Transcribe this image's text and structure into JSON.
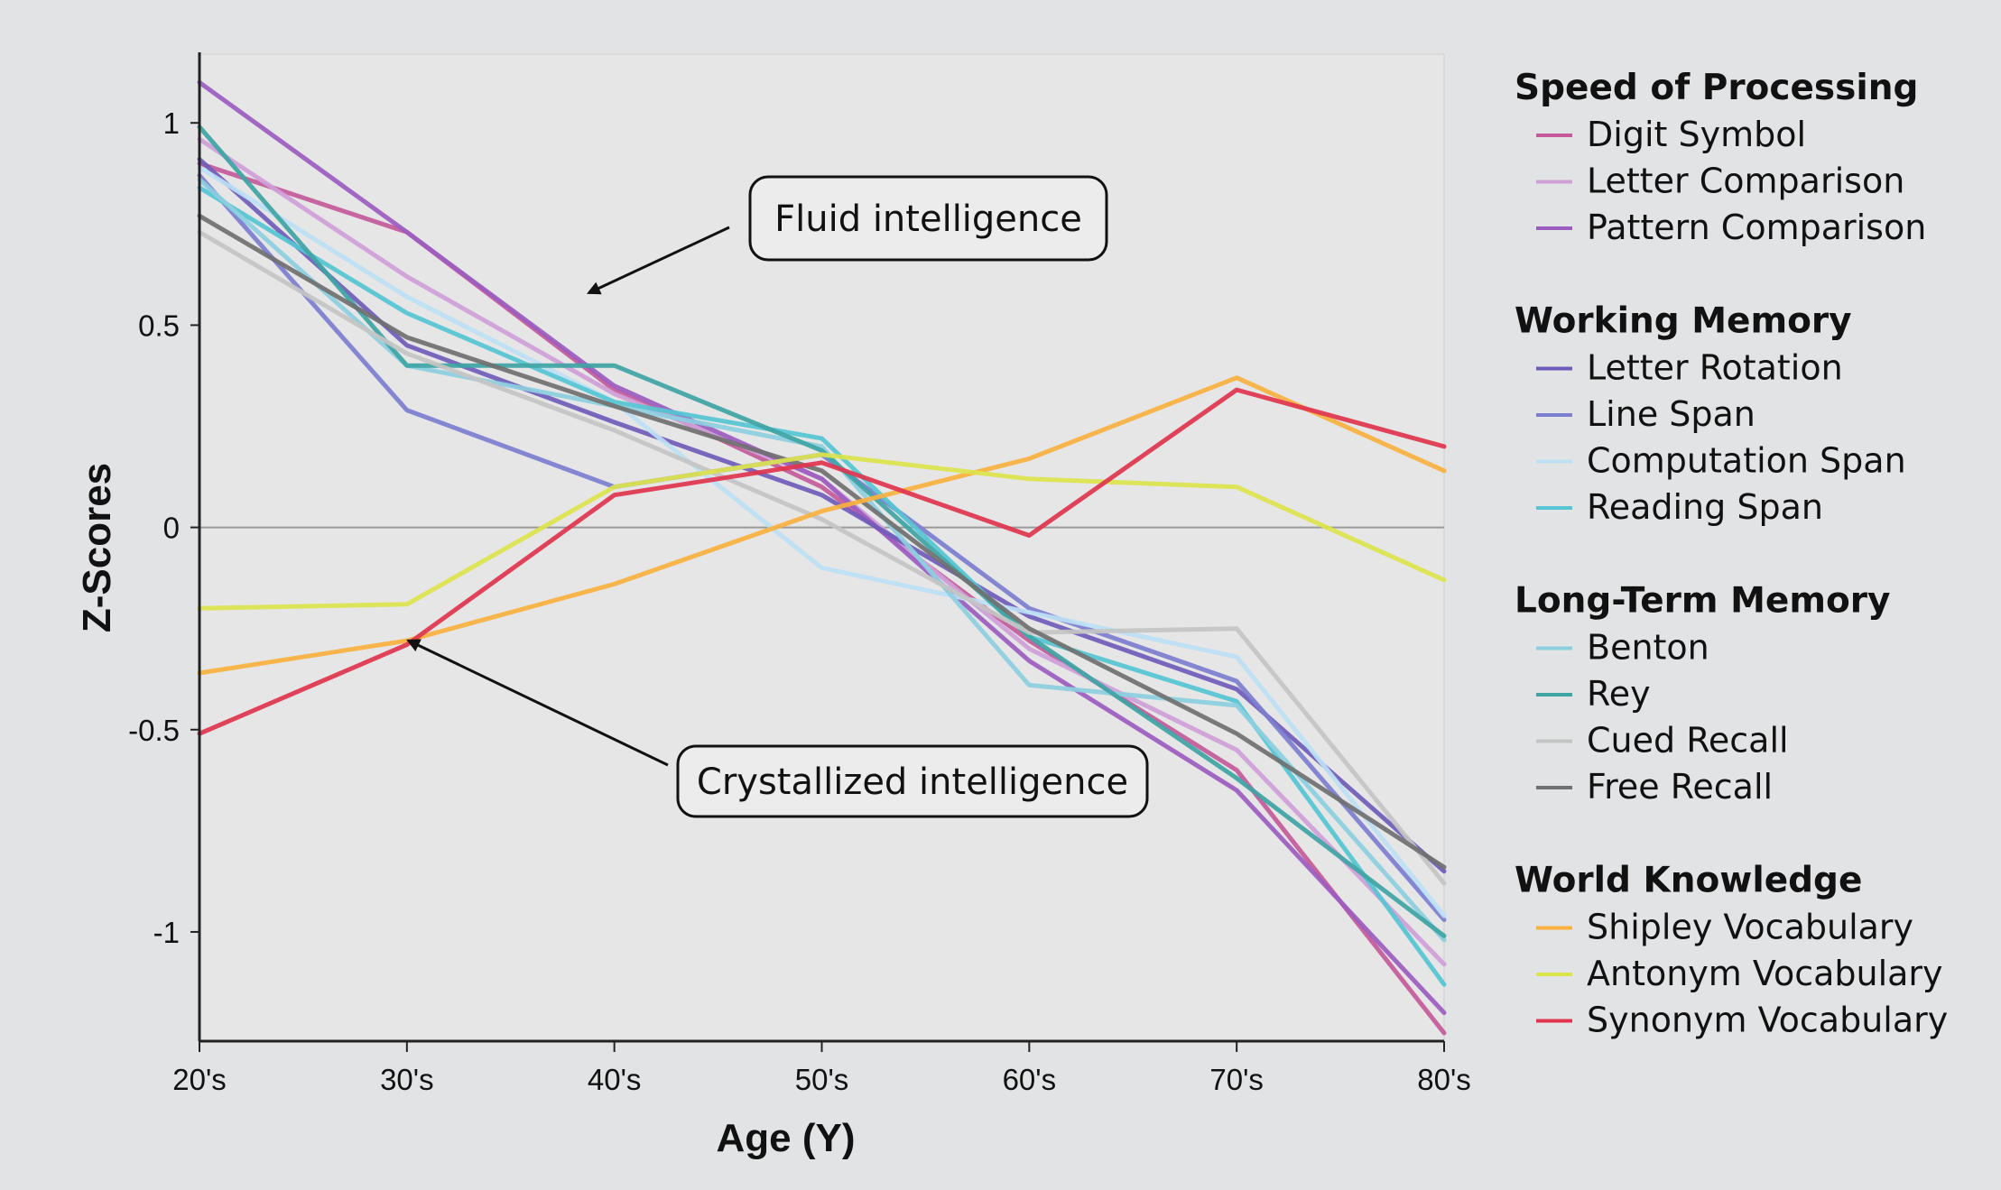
{
  "chart_data": {
    "type": "line",
    "title": "",
    "xlabel": "Age (Y)",
    "ylabel": "Z-Scores",
    "categories": [
      "20's",
      "30's",
      "40's",
      "50's",
      "60's",
      "70's",
      "80's"
    ],
    "ylim": [
      -1.27,
      1.17
    ],
    "yticks": [
      {
        "value": 1,
        "label": "1"
      },
      {
        "value": 0.5,
        "label": "0.5"
      },
      {
        "value": 0,
        "label": "0"
      },
      {
        "value": -0.5,
        "label": "-0.5"
      },
      {
        "value": -1,
        "label": "-1"
      }
    ],
    "grid": false,
    "zero_line": true,
    "legend_position": "right",
    "groups": [
      {
        "title": "Speed of Processing",
        "series": [
          {
            "name": "Digit Symbol",
            "color": "#c45a9a",
            "values": [
              0.9,
              0.73,
              0.34,
              0.1,
              -0.28,
              -0.6,
              -1.25
            ]
          },
          {
            "name": "Letter Comparison",
            "color": "#cfa0d8",
            "values": [
              0.96,
              0.62,
              0.33,
              0.12,
              -0.3,
              -0.55,
              -1.08
            ]
          },
          {
            "name": "Pattern Comparison",
            "color": "#9b5cc0",
            "values": [
              1.1,
              0.73,
              0.35,
              0.12,
              -0.33,
              -0.65,
              -1.2
            ]
          }
        ]
      },
      {
        "title": "Working Memory",
        "series": [
          {
            "name": "Letter Rotation",
            "color": "#6f5cba",
            "values": [
              0.91,
              0.45,
              0.26,
              0.08,
              -0.22,
              -0.4,
              -0.85
            ]
          },
          {
            "name": "Line Span",
            "color": "#7d7ed0",
            "values": [
              0.87,
              0.29,
              0.1,
              0.18,
              -0.2,
              -0.38,
              -0.97
            ]
          },
          {
            "name": "Computation Span",
            "color": "#bde0f5",
            "values": [
              0.89,
              0.57,
              0.31,
              -0.1,
              -0.21,
              -0.32,
              -0.96
            ]
          },
          {
            "name": "Reading Span",
            "color": "#55c6d3",
            "values": [
              0.84,
              0.53,
              0.31,
              0.22,
              -0.27,
              -0.43,
              -1.13
            ]
          }
        ]
      },
      {
        "title": "Long-Term Memory",
        "series": [
          {
            "name": "Benton",
            "color": "#8ccfe0",
            "values": [
              0.86,
              0.4,
              0.3,
              0.2,
              -0.39,
              -0.44,
              -1.02
            ]
          },
          {
            "name": "Rey",
            "color": "#3fa4a4",
            "values": [
              0.99,
              0.4,
              0.4,
              0.19,
              -0.27,
              -0.62,
              -1.01
            ]
          },
          {
            "name": "Cued Recall",
            "color": "#c4c4c4",
            "values": [
              0.73,
              0.43,
              0.24,
              0.02,
              -0.26,
              -0.25,
              -0.88
            ]
          },
          {
            "name": "Free Recall",
            "color": "#707070",
            "values": [
              0.77,
              0.47,
              0.3,
              0.14,
              -0.25,
              -0.51,
              -0.84
            ]
          }
        ]
      },
      {
        "title": "World Knowledge",
        "series": [
          {
            "name": "Shipley Vocabulary",
            "color": "#f9b13f",
            "values": [
              -0.36,
              -0.28,
              -0.14,
              0.04,
              0.17,
              0.37,
              0.14
            ]
          },
          {
            "name": "Antonym Vocabulary",
            "color": "#dce44c",
            "values": [
              -0.2,
              -0.19,
              0.1,
              0.18,
              0.12,
              0.1,
              -0.13
            ]
          },
          {
            "name": "Synonym Vocabulary",
            "color": "#e0344e",
            "values": [
              -0.51,
              -0.29,
              0.08,
              0.16,
              -0.02,
              0.34,
              0.2
            ]
          }
        ]
      }
    ],
    "annotations": [
      {
        "text": "Fluid intelligence",
        "points_to": {
          "x": "40's",
          "y": 0.58
        }
      },
      {
        "text": "Crystallized intelligence",
        "points_to": {
          "x": "30's",
          "y": -0.28
        }
      }
    ]
  }
}
